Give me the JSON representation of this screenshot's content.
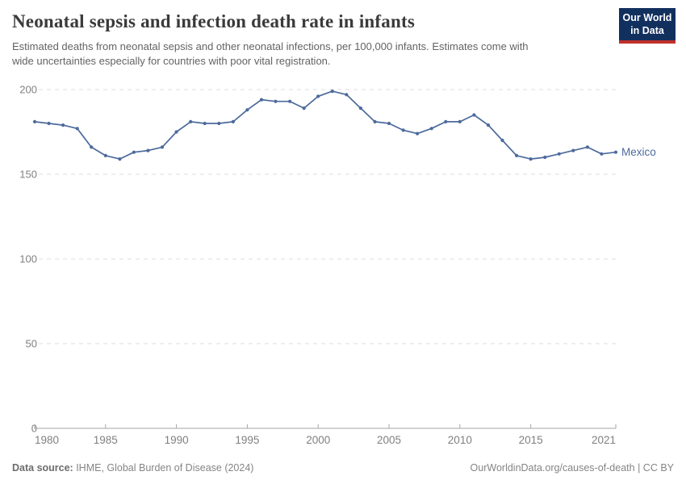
{
  "header": {
    "title": "Neonatal sepsis and infection death rate in infants",
    "subtitle": "Estimated deaths from neonatal sepsis and other neonatal infections, per 100,000 infants. Estimates come with wide uncertainties especially for countries with poor vital registration.",
    "logo": {
      "line1": "Our World",
      "line2": "in Data",
      "bg_color": "#12305e",
      "stripe_color": "#c0302b"
    }
  },
  "chart_data": {
    "type": "line",
    "title": "Neonatal sepsis and infection death rate in infants",
    "xlabel": "",
    "ylabel": "Estimated deaths per 100,000 infants",
    "x": [
      1980,
      1981,
      1982,
      1983,
      1984,
      1985,
      1986,
      1987,
      1988,
      1989,
      1990,
      1991,
      1992,
      1993,
      1994,
      1995,
      1996,
      1997,
      1998,
      1999,
      2000,
      2001,
      2002,
      2003,
      2004,
      2005,
      2006,
      2007,
      2008,
      2009,
      2010,
      2011,
      2012,
      2013,
      2014,
      2015,
      2016,
      2017,
      2018,
      2019,
      2020,
      2021
    ],
    "series": [
      {
        "name": "Mexico",
        "color": "#4c6a9c",
        "values": [
          181,
          180,
          179,
          177,
          166,
          161,
          159,
          163,
          164,
          166,
          175,
          181,
          180,
          180,
          181,
          188,
          194,
          193,
          193,
          189,
          196,
          199,
          197,
          189,
          181,
          180,
          176,
          174,
          177,
          181,
          181,
          185,
          179,
          170,
          161,
          159,
          160,
          162,
          164,
          166,
          162,
          163
        ]
      }
    ],
    "xlim": [
      1980,
      2021
    ],
    "ylim": [
      0,
      200
    ],
    "xticks": [
      1980,
      1985,
      1990,
      1995,
      2000,
      2005,
      2010,
      2015,
      2021
    ],
    "yticks": [
      0,
      50,
      100,
      150,
      200
    ],
    "grid": "horizontal-dashed",
    "legend_position": "end-of-line-label",
    "colors": {
      "gridline": "#dcdcdc",
      "axis": "#a5a5a5",
      "tick_label": "#808080"
    }
  },
  "footer": {
    "datasource_label": "Data source:",
    "datasource_value": " IHME, Global Burden of Disease (2024)",
    "credit_link": "OurWorldinData.org/causes-of-death",
    "credit_suffix": " | CC BY"
  }
}
